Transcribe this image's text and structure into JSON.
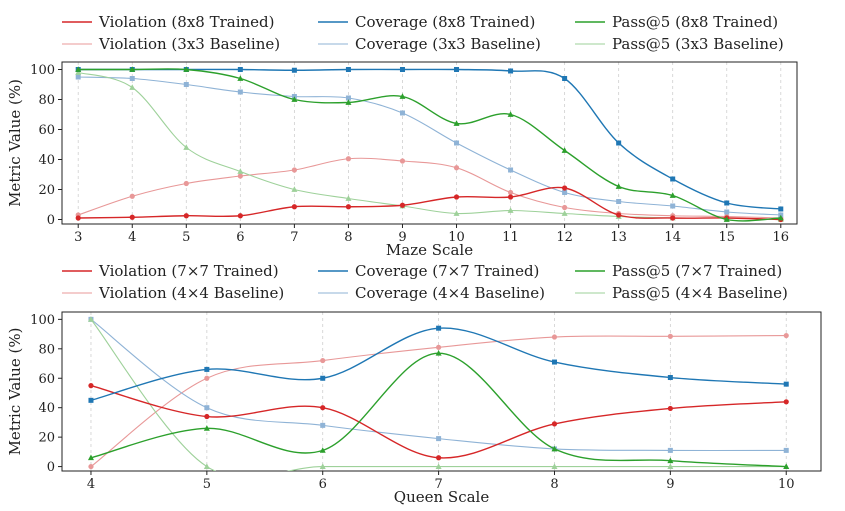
{
  "chart_data": [
    {
      "type": "line",
      "xlabel": "Maze Scale",
      "ylabel": "Metric Value (%)",
      "x": [
        3,
        4,
        5,
        6,
        7,
        8,
        9,
        10,
        11,
        12,
        13,
        14,
        15,
        16
      ],
      "xlim": [
        2.7,
        16.3
      ],
      "ylim": [
        -3,
        105
      ],
      "yticks": [
        0,
        20,
        40,
        60,
        80,
        100
      ],
      "grid": "vertical dashed",
      "legend_position": "top",
      "series": [
        {
          "name": "Violation (8x8 Trained)",
          "color": "#d62728",
          "marker": "circle",
          "baseline": false,
          "values": [
            1,
            1.5,
            2.5,
            2.5,
            8.5,
            8.5,
            9.5,
            15,
            15,
            21,
            3,
            1,
            1,
            0
          ]
        },
        {
          "name": "Coverage (8x8 Trained)",
          "color": "#1f77b4",
          "marker": "square",
          "baseline": false,
          "values": [
            100,
            100,
            100,
            100,
            99.5,
            100,
            100,
            100,
            99,
            94,
            51,
            27,
            11,
            7
          ]
        },
        {
          "name": "Pass@5 (8x8 Trained)",
          "color": "#2ca02c",
          "marker": "triangle",
          "baseline": false,
          "values": [
            100,
            100,
            100,
            94,
            80,
            78,
            82,
            64,
            70,
            46,
            22,
            16,
            0,
            1
          ]
        },
        {
          "name": "Violation (3x3 Baseline)",
          "color": "#e89898",
          "marker": "circle",
          "baseline": true,
          "values": [
            3,
            15.5,
            24,
            29,
            33,
            40.5,
            39,
            34.5,
            18,
            8,
            4,
            2.5,
            2,
            1
          ]
        },
        {
          "name": "Coverage (3x3 Baseline)",
          "color": "#8fb3d6",
          "marker": "square",
          "baseline": true,
          "values": [
            95,
            94,
            90,
            85,
            82,
            81,
            71,
            51,
            33,
            18,
            12,
            9,
            5,
            3
          ]
        },
        {
          "name": "Pass@5 (3x3 Baseline)",
          "color": "#9ed19a",
          "marker": "triangle",
          "baseline": true,
          "values": [
            98,
            88,
            48,
            32,
            20,
            14,
            9,
            4,
            6,
            4,
            2,
            1,
            1,
            0
          ]
        }
      ]
    },
    {
      "type": "line",
      "xlabel": "Queen Scale",
      "ylabel": "Metric Value (%)",
      "x": [
        4,
        5,
        6,
        7,
        8,
        9,
        10
      ],
      "xlim": [
        3.75,
        10.3
      ],
      "ylim": [
        -3,
        105
      ],
      "yticks": [
        0,
        20,
        40,
        60,
        80,
        100
      ],
      "grid": "vertical dashed",
      "legend_position": "top",
      "series": [
        {
          "name": "Violation (7×7 Trained)",
          "color": "#d62728",
          "marker": "circle",
          "baseline": false,
          "values": [
            55,
            34,
            40,
            6,
            29,
            39.5,
            44
          ]
        },
        {
          "name": "Coverage (7×7 Trained)",
          "color": "#1f77b4",
          "marker": "square",
          "baseline": false,
          "values": [
            45,
            66,
            60,
            94,
            71,
            60.5,
            56
          ]
        },
        {
          "name": "Pass@5 (7×7 Trained)",
          "color": "#2ca02c",
          "marker": "triangle",
          "baseline": false,
          "values": [
            6,
            26,
            11,
            77,
            12,
            4,
            0
          ]
        },
        {
          "name": "Violation (4×4 Baseline)",
          "color": "#e89898",
          "marker": "circle",
          "baseline": true,
          "values": [
            0,
            60,
            72,
            81,
            88,
            88.5,
            89
          ]
        },
        {
          "name": "Coverage (4×4 Baseline)",
          "color": "#8fb3d6",
          "marker": "square",
          "baseline": true,
          "values": [
            100,
            40,
            28,
            19,
            12,
            11,
            11
          ]
        },
        {
          "name": "Pass@5 (4×4 Baseline)",
          "color": "#9ed19a",
          "marker": "triangle",
          "baseline": true,
          "values": [
            100,
            0,
            0,
            0,
            0,
            0,
            0
          ]
        }
      ]
    }
  ]
}
